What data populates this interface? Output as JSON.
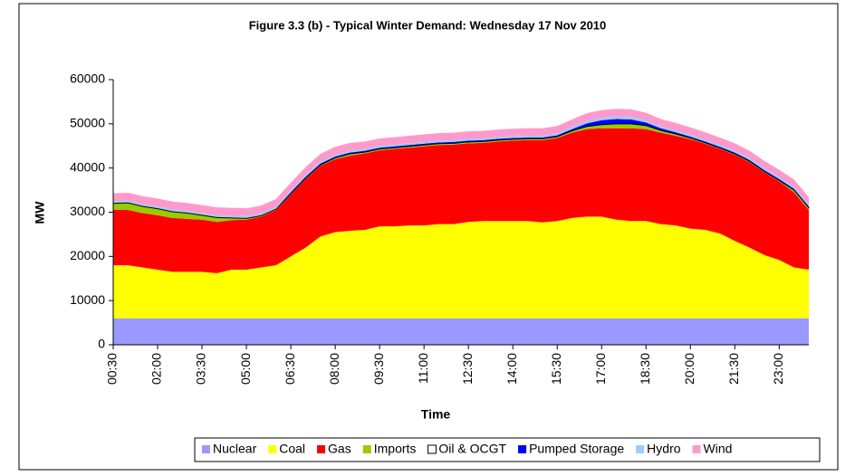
{
  "chart_data": {
    "type": "stacked_area",
    "title": "Figure 3.3 (b) - Typical Winter Demand: Wednesday 17 Nov 2010",
    "xlabel": "Time",
    "ylabel": "MW",
    "categories": [
      "00:30",
      null,
      null,
      "02:00",
      null,
      null,
      "03:30",
      null,
      null,
      "05:00",
      null,
      null,
      "06:30",
      null,
      null,
      "08:00",
      null,
      null,
      "09:30",
      null,
      null,
      "11:00",
      null,
      null,
      "12:30",
      null,
      null,
      "14:00",
      null,
      null,
      "15:30",
      null,
      null,
      "17:00",
      null,
      null,
      "18:30",
      null,
      null,
      "20:00",
      null,
      null,
      "21:30",
      null,
      null,
      "23:00",
      null,
      null
    ],
    "series": [
      {
        "name": "Nuclear",
        "color": "#9999ff",
        "values": [
          6000,
          6000,
          6000,
          6000,
          6000,
          6000,
          6000,
          6000,
          6000,
          6000,
          6000,
          6000,
          6000,
          6000,
          6000,
          6000,
          6000,
          6000,
          6000,
          6000,
          6000,
          6000,
          6000,
          6000,
          6000,
          6000,
          6000,
          6000,
          6000,
          6000,
          6000,
          6000,
          6000,
          6000,
          6000,
          6000,
          6000,
          6000,
          6000,
          6000,
          6000,
          6000,
          6000,
          6000,
          6000,
          6000,
          6000,
          6000
        ]
      },
      {
        "name": "Coal",
        "color": "#ffff00",
        "values": [
          12000,
          12000,
          11500,
          11000,
          10500,
          10500,
          10500,
          10200,
          11000,
          11000,
          11500,
          12000,
          14000,
          16000,
          18500,
          19500,
          19800,
          20000,
          20800,
          20800,
          21000,
          21000,
          21300,
          21300,
          21800,
          22000,
          22000,
          22000,
          22000,
          21700,
          22000,
          22700,
          23000,
          23000,
          22300,
          22000,
          22000,
          21300,
          21000,
          20300,
          20000,
          19200,
          17500,
          16000,
          14300,
          13200,
          11500,
          11000
        ]
      },
      {
        "name": "Gas",
        "color": "#ff0000",
        "values": [
          12500,
          12500,
          12300,
          12300,
          12200,
          12000,
          11800,
          11600,
          11200,
          11300,
          11500,
          12500,
          14000,
          15500,
          16000,
          16500,
          17000,
          17300,
          17200,
          17500,
          17600,
          17900,
          17900,
          18000,
          17800,
          17700,
          18000,
          18200,
          18300,
          18600,
          18800,
          19300,
          19800,
          20000,
          20700,
          21000,
          20800,
          20700,
          20300,
          20200,
          19500,
          19100,
          19500,
          19300,
          18700,
          17800,
          17000,
          13500
        ]
      },
      {
        "name": "Imports",
        "color": "#99cc00",
        "values": [
          1500,
          1600,
          1500,
          1500,
          1400,
          1300,
          1000,
          1000,
          500,
          300,
          200,
          200,
          200,
          200,
          200,
          300,
          400,
          300,
          300,
          300,
          300,
          300,
          300,
          300,
          300,
          300,
          300,
          300,
          300,
          300,
          300,
          400,
          600,
          800,
          1000,
          1000,
          800,
          500,
          400,
          300,
          200,
          200,
          200,
          200,
          200,
          200,
          500,
          500
        ]
      },
      {
        "name": "Oil & OCGT",
        "color": "#ffffff",
        "edgecolor": "#000000",
        "values": [
          100,
          100,
          100,
          100,
          100,
          100,
          100,
          100,
          100,
          100,
          100,
          100,
          100,
          100,
          100,
          100,
          100,
          100,
          100,
          100,
          100,
          100,
          100,
          100,
          100,
          100,
          100,
          100,
          100,
          100,
          100,
          100,
          100,
          100,
          100,
          100,
          100,
          100,
          100,
          100,
          100,
          100,
          100,
          100,
          100,
          100,
          100,
          100
        ]
      },
      {
        "name": "Pumped Storage",
        "color": "#0000ff",
        "values": [
          0,
          0,
          0,
          0,
          0,
          0,
          0,
          0,
          0,
          0,
          0,
          0,
          200,
          200,
          200,
          200,
          200,
          200,
          200,
          200,
          200,
          200,
          200,
          200,
          200,
          200,
          200,
          200,
          200,
          200,
          200,
          300,
          600,
          900,
          1000,
          900,
          600,
          400,
          300,
          200,
          200,
          200,
          200,
          200,
          200,
          200,
          200,
          200
        ]
      },
      {
        "name": "Hydro",
        "color": "#99ccff",
        "values": [
          400,
          400,
          400,
          400,
          400,
          400,
          400,
          400,
          400,
          400,
          400,
          400,
          400,
          400,
          400,
          400,
          400,
          400,
          400,
          400,
          400,
          400,
          400,
          400,
          400,
          400,
          400,
          400,
          400,
          400,
          400,
          500,
          600,
          600,
          600,
          600,
          500,
          400,
          400,
          400,
          400,
          400,
          400,
          400,
          400,
          400,
          400,
          400
        ]
      },
      {
        "name": "Wind",
        "color": "#ff99cc",
        "values": [
          1800,
          1800,
          1800,
          1800,
          1800,
          1800,
          1800,
          1800,
          1800,
          1800,
          1800,
          1800,
          1800,
          1800,
          1800,
          1800,
          1800,
          1700,
          1700,
          1700,
          1700,
          1700,
          1700,
          1700,
          1700,
          1700,
          1700,
          1700,
          1700,
          1700,
          1700,
          1700,
          1700,
          1700,
          1700,
          1700,
          1700,
          1700,
          1700,
          1700,
          1700,
          1700,
          1700,
          1700,
          1700,
          1700,
          1700,
          1700
        ]
      }
    ],
    "ylim": [
      0,
      60000
    ],
    "yticks": [
      0,
      10000,
      20000,
      30000,
      40000,
      50000,
      60000
    ],
    "grid": false,
    "legend": "bottom"
  }
}
